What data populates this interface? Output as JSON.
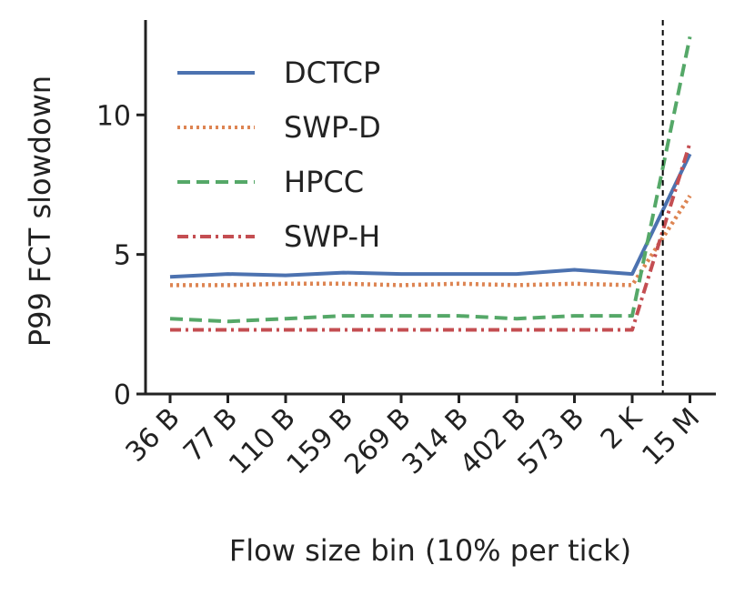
{
  "chart_data": {
    "type": "line",
    "xlabel": "Flow size bin (10% per tick)",
    "ylabel": "P99 FCT slowdown",
    "categories": [
      "36 B",
      "77 B",
      "110 B",
      "159 B",
      "269 B",
      "314 B",
      "402 B",
      "573 B",
      "2 K",
      "15 M"
    ],
    "ylim": [
      0,
      13.4
    ],
    "yticks": [
      0,
      5,
      10
    ],
    "ytick_labels": [
      "0",
      "5",
      "10"
    ],
    "vline_at_index": 8.53,
    "grid": false,
    "legend_position": "top-left",
    "series": [
      {
        "name": "DCTCP",
        "color": "#4c72b0",
        "dash": "solid",
        "values": [
          4.2,
          4.3,
          4.25,
          4.35,
          4.3,
          4.3,
          4.3,
          4.45,
          4.3,
          8.6
        ]
      },
      {
        "name": "SWP-D",
        "color": "#dd8452",
        "dash": "dotted",
        "values": [
          3.9,
          3.9,
          3.95,
          3.95,
          3.9,
          3.95,
          3.9,
          3.95,
          3.9,
          7.1
        ]
      },
      {
        "name": "HPCC",
        "color": "#55a868",
        "dash": "dashed",
        "values": [
          2.7,
          2.6,
          2.7,
          2.8,
          2.8,
          2.8,
          2.7,
          2.8,
          2.8,
          12.8
        ]
      },
      {
        "name": "SWP-H",
        "color": "#c44e52",
        "dash": "dashdot",
        "values": [
          2.3,
          2.3,
          2.3,
          2.3,
          2.3,
          2.3,
          2.3,
          2.3,
          2.3,
          9.0
        ]
      }
    ]
  }
}
